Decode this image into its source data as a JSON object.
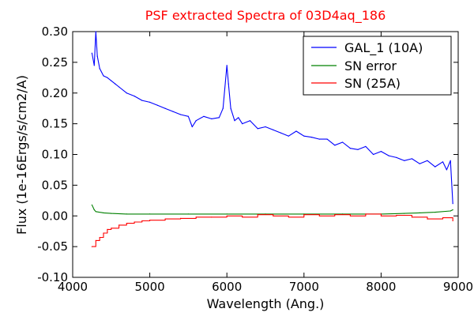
{
  "chart_data": {
    "type": "line",
    "title": "PSF extracted Spectra of 03D4aq_186",
    "xlabel": "Wavelength (Ang.)",
    "ylabel": "Flux (1e-16Ergs/s/cm2/A)",
    "xlim": [
      4000,
      9000
    ],
    "ylim": [
      -0.1,
      0.3
    ],
    "xticks": [
      4000,
      5000,
      6000,
      7000,
      8000,
      9000
    ],
    "yticks": [
      -0.1,
      -0.05,
      0.0,
      0.05,
      0.1,
      0.15,
      0.2,
      0.25,
      0.3
    ],
    "xtick_labels": [
      "4000",
      "5000",
      "6000",
      "7000",
      "8000",
      "9000"
    ],
    "ytick_labels": [
      "-0.10",
      "-0.05",
      "0.00",
      "0.05",
      "0.10",
      "0.15",
      "0.20",
      "0.25",
      "0.30"
    ],
    "grid": false,
    "legend_position": "top-right",
    "title_color": "#ff0000",
    "series": [
      {
        "name": "GAL_1 (10A)",
        "color": "#0000ff",
        "step": false,
        "x": [
          4250,
          4280,
          4300,
          4320,
          4350,
          4400,
          4450,
          4500,
          4550,
          4600,
          4700,
          4800,
          4900,
          5000,
          5100,
          5200,
          5300,
          5400,
          5500,
          5550,
          5600,
          5700,
          5800,
          5900,
          5950,
          6000,
          6020,
          6050,
          6100,
          6150,
          6200,
          6300,
          6400,
          6500,
          6600,
          6700,
          6800,
          6900,
          7000,
          7100,
          7200,
          7300,
          7400,
          7500,
          7600,
          7700,
          7800,
          7900,
          8000,
          8100,
          8200,
          8300,
          8400,
          8500,
          8600,
          8700,
          8800,
          8850,
          8900,
          8930
        ],
        "y": [
          0.265,
          0.245,
          0.3,
          0.26,
          0.24,
          0.228,
          0.225,
          0.22,
          0.215,
          0.21,
          0.2,
          0.195,
          0.188,
          0.185,
          0.18,
          0.175,
          0.17,
          0.165,
          0.162,
          0.145,
          0.155,
          0.162,
          0.158,
          0.16,
          0.175,
          0.245,
          0.215,
          0.175,
          0.155,
          0.16,
          0.15,
          0.155,
          0.142,
          0.145,
          0.14,
          0.135,
          0.13,
          0.138,
          0.13,
          0.128,
          0.125,
          0.125,
          0.115,
          0.12,
          0.11,
          0.108,
          0.113,
          0.1,
          0.105,
          0.098,
          0.095,
          0.09,
          0.093,
          0.085,
          0.09,
          0.08,
          0.088,
          0.075,
          0.09,
          0.02
        ]
      },
      {
        "name": "SN error",
        "color": "#008000",
        "step": false,
        "x": [
          4250,
          4280,
          4300,
          4400,
          4500,
          4700,
          5000,
          5500,
          6000,
          6500,
          7000,
          7500,
          8000,
          8300,
          8500,
          8700,
          8900,
          8930
        ],
        "y": [
          0.018,
          0.01,
          0.007,
          0.005,
          0.004,
          0.003,
          0.003,
          0.003,
          0.003,
          0.003,
          0.003,
          0.003,
          0.003,
          0.004,
          0.005,
          0.006,
          0.008,
          0.01
        ]
      },
      {
        "name": "SN (25A)",
        "color": "#ff0000",
        "step": true,
        "x": [
          4250,
          4300,
          4350,
          4400,
          4450,
          4500,
          4600,
          4700,
          4800,
          4900,
          5000,
          5200,
          5400,
          5600,
          5800,
          6000,
          6200,
          6400,
          6600,
          6800,
          7000,
          7200,
          7400,
          7600,
          7800,
          8000,
          8200,
          8400,
          8600,
          8800,
          8930
        ],
        "y": [
          -0.05,
          -0.04,
          -0.035,
          -0.028,
          -0.022,
          -0.02,
          -0.015,
          -0.012,
          -0.01,
          -0.008,
          -0.007,
          -0.005,
          -0.004,
          -0.002,
          -0.002,
          0.0,
          -0.002,
          0.002,
          0.0,
          -0.002,
          0.002,
          0.0,
          0.002,
          0.0,
          0.003,
          0.0,
          0.001,
          -0.002,
          -0.005,
          -0.003,
          -0.008
        ]
      }
    ]
  }
}
